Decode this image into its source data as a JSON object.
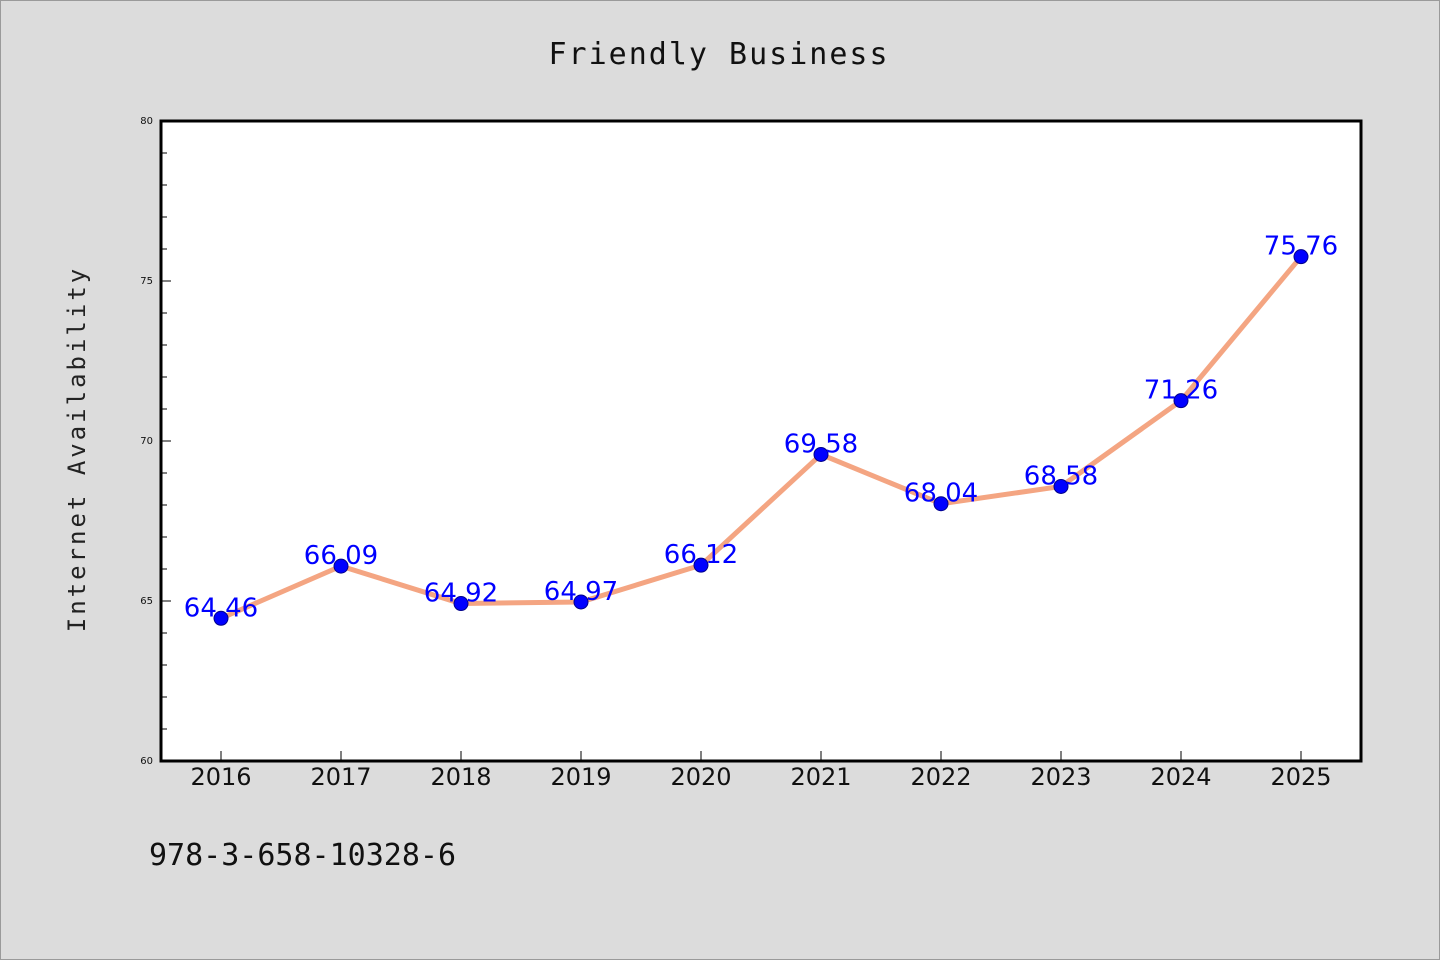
{
  "chart_data": {
    "type": "line",
    "title": "Friendly Business",
    "xlabel": "",
    "ylabel": "Internet Availability",
    "categories": [
      "2016",
      "2017",
      "2018",
      "2019",
      "2020",
      "2021",
      "2022",
      "2023",
      "2024",
      "2025"
    ],
    "series": [
      {
        "values": [
          64.46,
          66.09,
          64.92,
          64.97,
          66.12,
          69.58,
          68.04,
          68.58,
          71.26,
          75.76
        ]
      }
    ],
    "data_labels": [
      "64.46",
      "66.09",
      "64.92",
      "64.97",
      "66.12",
      "69.58",
      "68.04",
      "68.58",
      "71.26",
      "75.76"
    ],
    "ylim": [
      60,
      80
    ],
    "yticks": [
      60,
      65,
      70,
      75,
      80
    ],
    "ytick_labels": [
      "60",
      "65",
      "70",
      "75",
      "80"
    ],
    "grid": false,
    "legend": "none",
    "colors": {
      "line": "#f4a582",
      "marker": "#0000ff",
      "data_label": "#0000ff",
      "plot_background": "#ffffff",
      "figure_background": "#dcdcdc"
    }
  },
  "footer": {
    "code": "978-3-658-10328-6"
  }
}
